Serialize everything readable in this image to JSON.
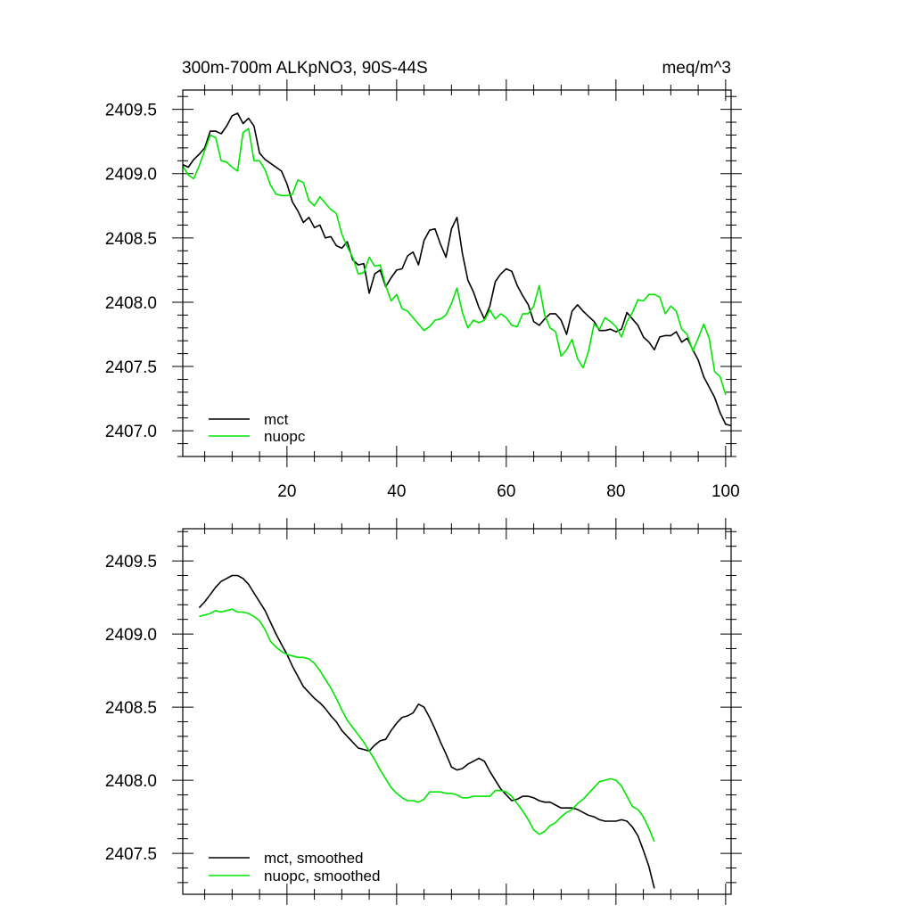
{
  "chart_data": [
    {
      "type": "line",
      "title_left": "300m-700m ALKpNO3, 90S-44S",
      "title_right": "meq/m^3",
      "xlim": [
        1,
        101
      ],
      "ylim": [
        2406.8,
        2409.65
      ],
      "x_major_ticks": [
        20,
        40,
        60,
        80,
        100
      ],
      "x_minor_step": 5,
      "x_tick_labels": [
        "20",
        "40",
        "60",
        "80",
        "100"
      ],
      "y_major_ticks": [
        2407.0,
        2407.5,
        2408.0,
        2408.5,
        2409.0,
        2409.5
      ],
      "y_minor_step": 0.1,
      "y_tick_labels": [
        "2407.0",
        "2407.5",
        "2408.0",
        "2408.5",
        "2409.0",
        "2409.5"
      ],
      "legend_position": "bottom-left",
      "series": [
        {
          "name": "mct",
          "color": "#000000",
          "x_start": 1,
          "values": [
            2409.07,
            2409.05,
            2409.11,
            2409.15,
            2409.2,
            2409.33,
            2409.33,
            2409.31,
            2409.37,
            2409.45,
            2409.47,
            2409.39,
            2409.43,
            2409.37,
            2409.16,
            2409.11,
            2409.08,
            2409.05,
            2409.02,
            2408.92,
            2408.78,
            2408.71,
            2408.62,
            2408.66,
            2408.58,
            2408.6,
            2408.5,
            2408.51,
            2408.44,
            2408.42,
            2408.47,
            2408.33,
            2408.29,
            2408.3,
            2408.07,
            2408.22,
            2408.25,
            2408.12,
            2408.19,
            2408.25,
            2408.26,
            2408.36,
            2408.39,
            2408.29,
            2408.48,
            2408.56,
            2408.57,
            2408.45,
            2408.35,
            2408.57,
            2408.66,
            2408.38,
            2408.17,
            2408.08,
            2407.96,
            2407.87,
            2407.97,
            2408.16,
            2408.22,
            2408.26,
            2408.24,
            2408.13,
            2408.05,
            2407.98,
            2407.85,
            2407.82,
            2407.87,
            2407.91,
            2407.91,
            2407.86,
            2407.75,
            2407.93,
            2407.98,
            2407.93,
            2407.89,
            2407.85,
            2407.78,
            2407.78,
            2407.79,
            2407.77,
            2407.79,
            2407.92,
            2407.87,
            2407.82,
            2407.73,
            2407.69,
            2407.63,
            2407.73,
            2407.74,
            2407.74,
            2407.77,
            2407.69,
            2407.72,
            2407.63,
            2407.55,
            2407.42,
            2407.34,
            2407.26,
            2407.14,
            2407.05,
            2407.04
          ]
        },
        {
          "name": "nuopc",
          "color": "#00e600",
          "x_start": 1,
          "values": [
            2409.06,
            2408.99,
            2408.96,
            2409.06,
            2409.18,
            2409.3,
            2409.28,
            2409.1,
            2409.09,
            2409.05,
            2409.02,
            2409.32,
            2409.35,
            2409.1,
            2409.1,
            2409.03,
            2408.91,
            2408.84,
            2408.83,
            2408.83,
            2408.84,
            2408.95,
            2408.93,
            2408.79,
            2408.75,
            2408.82,
            2408.77,
            2408.72,
            2408.69,
            2408.53,
            2408.43,
            2408.35,
            2408.22,
            2408.23,
            2408.35,
            2408.28,
            2408.29,
            2408.13,
            2408.01,
            2408.06,
            2407.95,
            2407.93,
            2407.88,
            2407.83,
            2407.78,
            2407.81,
            2407.86,
            2407.87,
            2407.9,
            2407.99,
            2408.11,
            2407.92,
            2407.8,
            2407.86,
            2407.84,
            2407.86,
            2407.94,
            2407.87,
            2407.91,
            2407.88,
            2407.82,
            2407.81,
            2407.91,
            2407.91,
            2407.97,
            2408.13,
            2407.9,
            2407.8,
            2407.77,
            2407.58,
            2407.63,
            2407.71,
            2407.56,
            2407.49,
            2407.62,
            2407.83,
            2407.79,
            2407.88,
            2407.85,
            2407.81,
            2407.73,
            2407.85,
            2407.92,
            2408.02,
            2408.01,
            2408.06,
            2408.06,
            2408.04,
            2407.91,
            2407.97,
            2407.93,
            2407.79,
            2407.75,
            2407.62,
            2407.72,
            2407.83,
            2407.72,
            2407.46,
            2407.42,
            2407.28
          ]
        }
      ]
    },
    {
      "type": "line",
      "xlim": [
        1,
        101
      ],
      "ylim": [
        2407.22,
        2409.72
      ],
      "x_major_ticks": [
        20,
        40,
        60,
        80,
        100
      ],
      "x_minor_step": 5,
      "y_major_ticks": [
        2407.5,
        2408.0,
        2408.5,
        2409.0,
        2409.5
      ],
      "y_minor_step": 0.1,
      "y_tick_labels": [
        "2407.5",
        "2408.0",
        "2408.5",
        "2409.0",
        "2409.5"
      ],
      "legend_position": "bottom-left",
      "series": [
        {
          "name": "mct, smoothed",
          "color": "#000000",
          "x_start": 4,
          "values": [
            2409.18,
            2409.22,
            2409.27,
            2409.32,
            2409.36,
            2409.38,
            2409.4,
            2409.4,
            2409.38,
            2409.34,
            2409.28,
            2409.22,
            2409.16,
            2409.08,
            2409.0,
            2408.93,
            2408.86,
            2408.78,
            2408.71,
            2408.64,
            2408.6,
            2408.56,
            2408.53,
            2408.49,
            2408.44,
            2408.4,
            2408.34,
            2408.3,
            2408.26,
            2408.22,
            2408.21,
            2408.2,
            2408.24,
            2408.27,
            2408.28,
            2408.34,
            2408.39,
            2408.43,
            2408.44,
            2408.46,
            2408.52,
            2408.5,
            2408.43,
            2408.35,
            2408.26,
            2408.18,
            2408.09,
            2408.07,
            2408.08,
            2408.11,
            2408.13,
            2408.15,
            2408.13,
            2408.06,
            2408.0,
            2407.94,
            2407.9,
            2407.86,
            2407.87,
            2407.89,
            2407.89,
            2407.88,
            2407.86,
            2407.85,
            2407.85,
            2407.83,
            2407.81,
            2407.81,
            2407.81,
            2407.8,
            2407.78,
            2407.76,
            2407.75,
            2407.73,
            2407.72,
            2407.72,
            2407.72,
            2407.73,
            2407.72,
            2407.68,
            2407.62,
            2407.52,
            2407.41,
            2407.26
          ]
        },
        {
          "name": "nuopc, smoothed",
          "color": "#00e600",
          "x_start": 4,
          "values": [
            2409.12,
            2409.13,
            2409.14,
            2409.16,
            2409.15,
            2409.16,
            2409.17,
            2409.15,
            2409.15,
            2409.14,
            2409.12,
            2409.09,
            2409.03,
            2408.95,
            2408.91,
            2408.88,
            2408.86,
            2408.85,
            2408.84,
            2408.84,
            2408.83,
            2408.8,
            2408.75,
            2408.69,
            2408.63,
            2408.56,
            2408.48,
            2408.41,
            2408.36,
            2408.31,
            2408.26,
            2408.2,
            2408.14,
            2408.07,
            2408.01,
            2407.95,
            2407.91,
            2407.88,
            2407.86,
            2407.86,
            2407.85,
            2407.87,
            2407.92,
            2407.92,
            2407.92,
            2407.91,
            2407.91,
            2407.9,
            2407.88,
            2407.88,
            2407.89,
            2407.89,
            2407.89,
            2407.89,
            2407.93,
            2407.93,
            2407.92,
            2407.89,
            2407.84,
            2407.79,
            2407.73,
            2407.66,
            2407.63,
            2407.65,
            2407.69,
            2407.71,
            2407.75,
            2407.78,
            2407.8,
            2407.84,
            2407.87,
            2407.91,
            2407.95,
            2407.99,
            2408.0,
            2408.01,
            2408.0,
            2407.96,
            2407.89,
            2407.82,
            2407.8,
            2407.75,
            2407.67,
            2407.58
          ]
        }
      ]
    }
  ]
}
